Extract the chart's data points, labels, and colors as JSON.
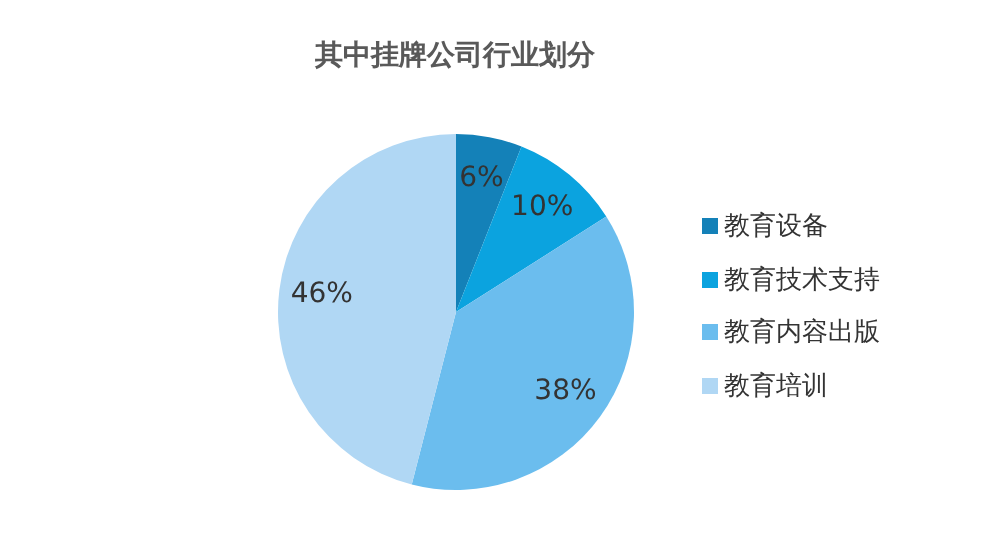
{
  "chart_data": {
    "type": "pie",
    "title": "其中挂牌公司行业划分",
    "categories": [
      "教育设备",
      "教育技术支持",
      "教育内容出版",
      "教育培训"
    ],
    "values": [
      6,
      10,
      38,
      46
    ],
    "colors": [
      "#1481b8",
      "#0ba3df",
      "#6bbdee",
      "#b0d7f4"
    ],
    "value_labels": [
      "6%",
      "10%",
      "38%",
      "46%"
    ],
    "legend": "right"
  }
}
